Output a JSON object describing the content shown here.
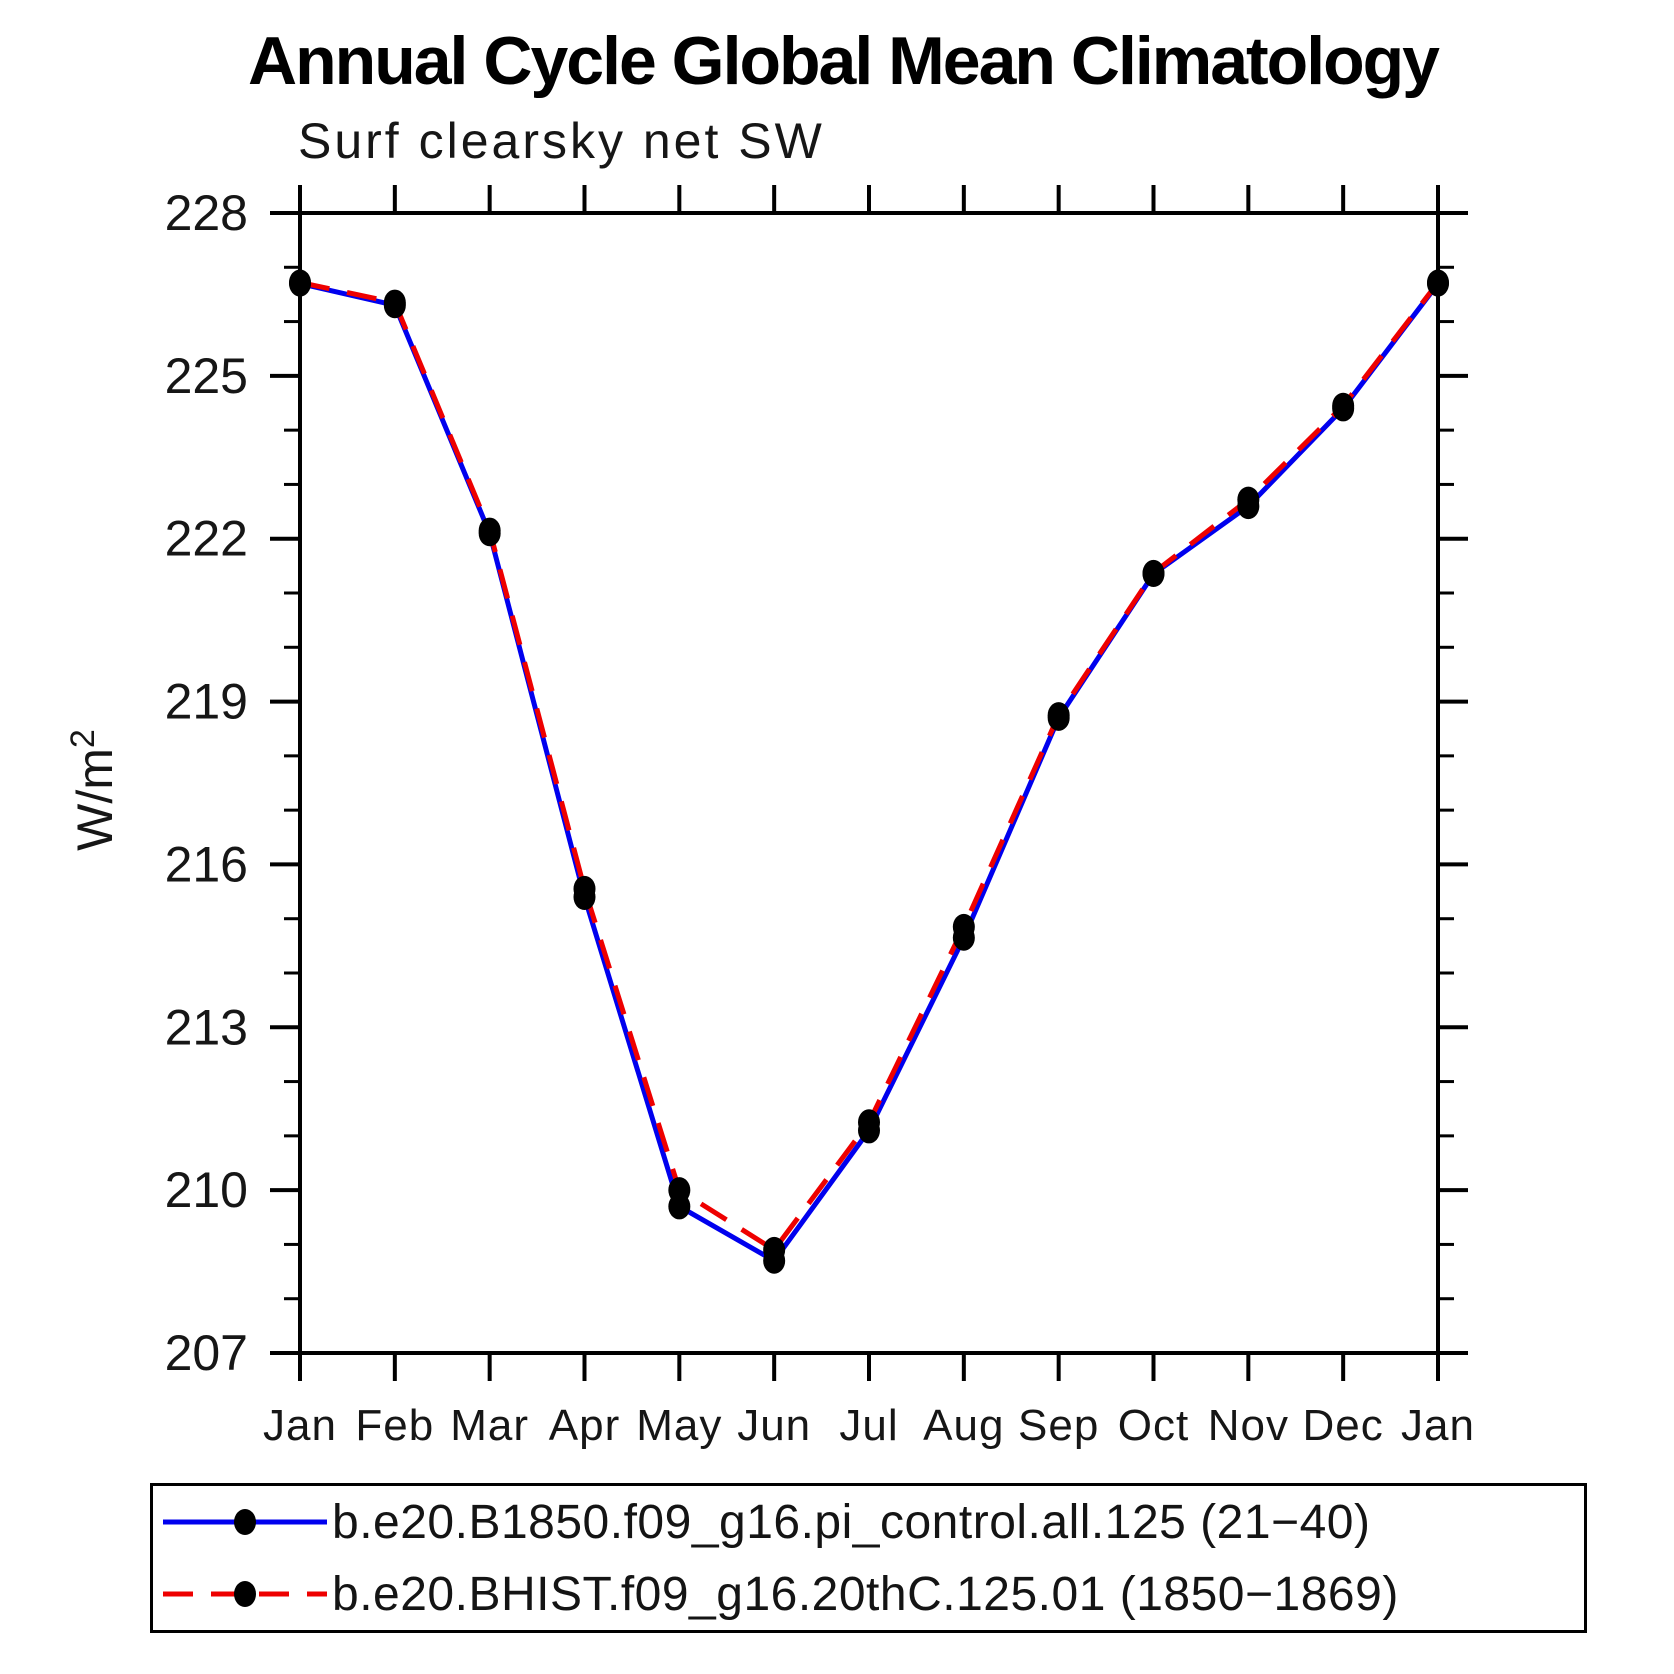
{
  "header": {
    "title": "Annual Cycle Global Mean Climatology",
    "subtitle": "Surf clearsky net SW"
  },
  "chart_data": {
    "type": "line",
    "title": "Annual Cycle Global Mean Climatology",
    "subtitle": "Surf clearsky net SW",
    "ylabel": "W/m²",
    "xlabel": "",
    "x_categories": [
      "Jan",
      "Feb",
      "Mar",
      "Apr",
      "May",
      "Jun",
      "Jul",
      "Aug",
      "Sep",
      "Oct",
      "Nov",
      "Dec",
      "Jan"
    ],
    "ylim": [
      207,
      228
    ],
    "ytick_major_step": 3,
    "ytick_minor_step": 1,
    "ytick_labels": [
      "207",
      "210",
      "213",
      "216",
      "219",
      "222",
      "225",
      "228"
    ],
    "grid": false,
    "legend_position": "bottom",
    "colors": {
      "series1": "#0000ee",
      "series2": "#ee0000",
      "marker": "#000000",
      "axis": "#000000"
    },
    "series": [
      {
        "name": "b.e20.B1850.f09_g16.pi_control.all.125 (21−40)",
        "color": "#0000ee",
        "line_style": "solid",
        "marker": "circle",
        "marker_color": "#000000",
        "values": [
          226.7,
          226.3,
          222.1,
          215.4,
          209.7,
          208.7,
          211.1,
          214.65,
          218.7,
          221.35,
          222.6,
          224.4,
          226.7
        ]
      },
      {
        "name": "b.e20.BHIST.f09_g16.20thC.125.01 (1850−1869)",
        "color": "#ee0000",
        "line_style": "dashed",
        "marker": "circle",
        "marker_color": "#000000",
        "values": [
          226.72,
          226.35,
          222.15,
          215.55,
          210.0,
          208.9,
          211.25,
          214.85,
          218.75,
          221.37,
          222.72,
          224.45,
          226.72
        ]
      }
    ]
  }
}
